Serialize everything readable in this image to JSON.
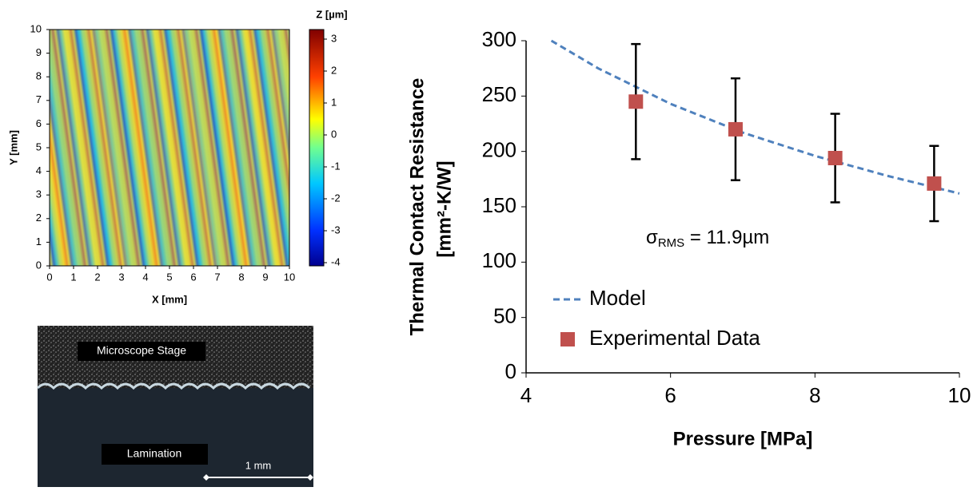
{
  "chart_data": [
    {
      "type": "heatmap",
      "xlabel": "X [mm]",
      "ylabel": "Y [mm]",
      "colorbar_label": "Z [µm]",
      "xlim": [
        0,
        10
      ],
      "xticks": [
        0,
        1,
        2,
        3,
        4,
        5,
        6,
        7,
        8,
        9,
        10
      ],
      "ylim": [
        0,
        10
      ],
      "yticks": [
        0,
        1,
        2,
        3,
        4,
        5,
        6,
        7,
        8,
        9,
        10
      ],
      "clim": [
        -4.1,
        3.3
      ],
      "cticks": [
        3,
        2,
        1,
        0,
        -1,
        -2,
        -3,
        -4
      ]
    },
    {
      "type": "scatter",
      "xlabel": "Pressure [MPa]",
      "ylabel": [
        "Thermal Contact Resistance",
        "[mm²-K/W]"
      ],
      "xlim": [
        4,
        10
      ],
      "xticks": [
        4,
        6,
        8,
        10
      ],
      "ylim": [
        0,
        300
      ],
      "yticks": [
        0,
        50,
        100,
        150,
        200,
        250,
        300
      ],
      "annotation": {
        "symbol": "σ",
        "subscript": "RMS",
        "text": " = 11.9µm"
      },
      "series": [
        {
          "name": "Model",
          "color": "#4f81bd",
          "style": "dashed",
          "x": [
            4.35,
            5,
            6,
            7,
            8,
            9,
            10
          ],
          "values": [
            300,
            275,
            243,
            217,
            196,
            178,
            162
          ]
        },
        {
          "name": "Experimental Data",
          "color": "#c0504d",
          "style": "marker",
          "x": [
            5.52,
            6.9,
            8.28,
            9.65
          ],
          "values": [
            245,
            220,
            194,
            171
          ],
          "errors": [
            52,
            46,
            40,
            34
          ]
        }
      ]
    }
  ],
  "photo": {
    "labels": [
      "Microscope Stage",
      "Lamination"
    ],
    "scale_bar": "1 mm"
  }
}
